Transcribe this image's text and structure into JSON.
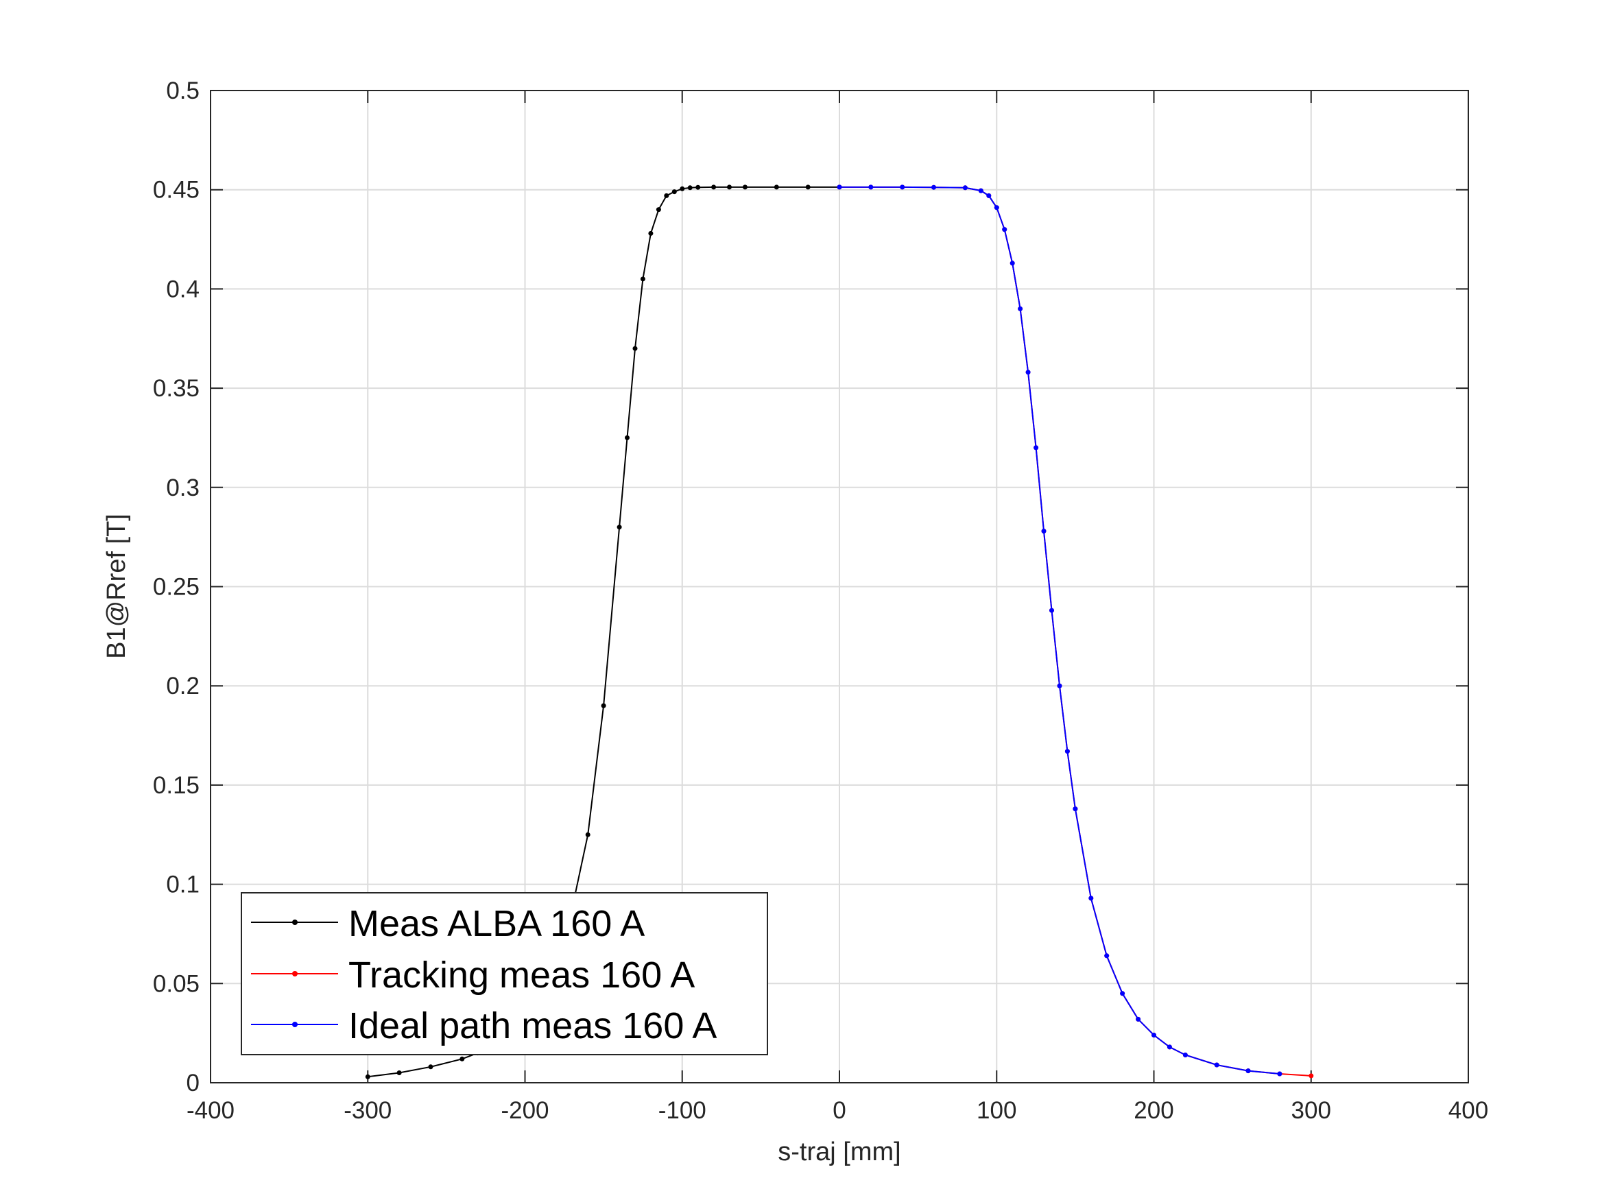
{
  "chart_data": {
    "type": "line",
    "xlabel": "s-traj [mm]",
    "ylabel": "B1@Rref [T]",
    "xlim": [
      -400,
      400
    ],
    "ylim": [
      0,
      0.5
    ],
    "xticks": [
      "-400",
      "-300",
      "-200",
      "-100",
      "0",
      "100",
      "200",
      "300",
      "400"
    ],
    "yticks": [
      "0",
      "0.05",
      "0.1",
      "0.15",
      "0.2",
      "0.25",
      "0.3",
      "0.35",
      "0.4",
      "0.45",
      "0.5"
    ],
    "grid": true,
    "legend_position": "bottom-left",
    "series": [
      {
        "name": "Meas ALBA 160 A",
        "color": "#000000",
        "x": [
          -300,
          -280,
          -260,
          -240,
          -230,
          -220,
          -210,
          -200,
          -190,
          -180,
          -170,
          -160,
          -150,
          -140,
          -135,
          -130,
          -125,
          -120,
          -115,
          -110,
          -105,
          -100,
          -95,
          -90,
          -80,
          -70,
          -60,
          -40,
          -20,
          0
        ],
        "y": [
          0.003,
          0.005,
          0.008,
          0.012,
          0.015,
          0.02,
          0.027,
          0.036,
          0.048,
          0.065,
          0.088,
          0.125,
          0.19,
          0.28,
          0.325,
          0.37,
          0.405,
          0.428,
          0.44,
          0.447,
          0.449,
          0.4505,
          0.451,
          0.4512,
          0.4513,
          0.4513,
          0.4513,
          0.4513,
          0.4513,
          0.4513
        ]
      },
      {
        "name": "Tracking meas 160 A",
        "color": "#ff0000",
        "x": [
          0,
          20,
          40,
          60,
          80,
          90,
          95,
          100,
          105,
          110,
          115,
          120,
          125,
          130,
          135,
          140,
          145,
          150,
          160,
          170,
          180,
          190,
          200,
          210,
          220,
          240,
          260,
          280,
          300
        ],
        "y": [
          0.4513,
          0.4513,
          0.4513,
          0.4512,
          0.451,
          0.4495,
          0.447,
          0.441,
          0.43,
          0.413,
          0.39,
          0.358,
          0.32,
          0.278,
          0.238,
          0.2,
          0.167,
          0.138,
          0.093,
          0.064,
          0.045,
          0.032,
          0.024,
          0.018,
          0.014,
          0.009,
          0.006,
          0.0045,
          0.0035
        ]
      },
      {
        "name": "Ideal path meas 160 A",
        "color": "#0000ff",
        "x": [
          0,
          20,
          40,
          60,
          80,
          90,
          95,
          100,
          105,
          110,
          115,
          120,
          125,
          130,
          135,
          140,
          145,
          150,
          160,
          170,
          180,
          190,
          200,
          210,
          220,
          240,
          260,
          280
        ],
        "y": [
          0.4513,
          0.4513,
          0.4513,
          0.4512,
          0.451,
          0.4495,
          0.447,
          0.441,
          0.43,
          0.413,
          0.39,
          0.358,
          0.32,
          0.278,
          0.238,
          0.2,
          0.167,
          0.138,
          0.093,
          0.064,
          0.045,
          0.032,
          0.024,
          0.018,
          0.014,
          0.009,
          0.006,
          0.0045
        ]
      }
    ]
  }
}
